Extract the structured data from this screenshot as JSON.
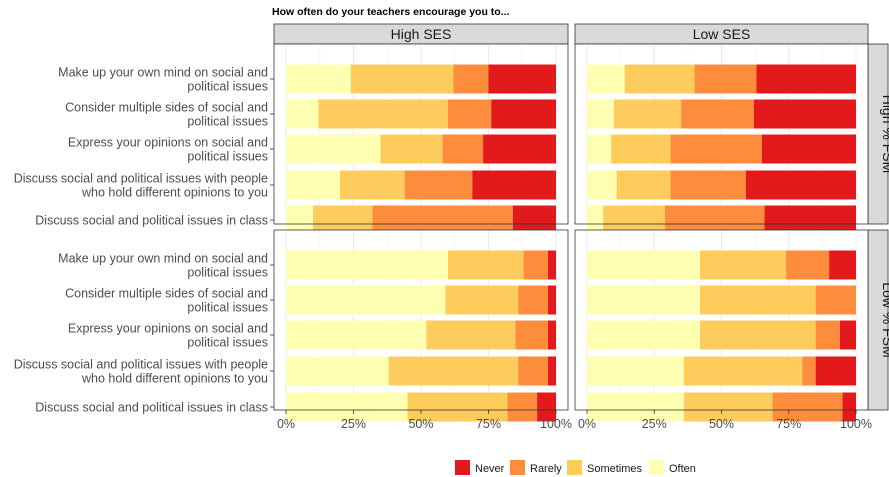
{
  "chart_data": {
    "type": "bar",
    "orientation": "horizontal",
    "stacked": "percent",
    "title": "How often do your teachers encourage you to...",
    "columns": [
      "High SES",
      "Low SES"
    ],
    "rows": [
      "High % FSM",
      "Low % FSM"
    ],
    "categories": [
      [
        "Make up your own mind on social and",
        "political issues"
      ],
      [
        "Consider multiple sides of social and",
        "political issues"
      ],
      [
        "Express your opinions on social and",
        "political issues"
      ],
      [
        "Discuss social and political issues with people",
        "who hold different opinions to you"
      ],
      [
        "Discuss social and political issues in class"
      ]
    ],
    "legend": [
      "Never",
      "Rarely",
      "Sometimes",
      "Often"
    ],
    "legend_position": "bottom",
    "colors": {
      "Never": "#e31a1c",
      "Rarely": "#fd8d3c",
      "Sometimes": "#fecc5c",
      "Often": "#ffffb2"
    },
    "xlim": [
      0,
      100
    ],
    "xticks": [
      "0%",
      "25%",
      "50%",
      "75%",
      "100%"
    ],
    "panels": [
      {
        "column": "High SES",
        "row": "High % FSM",
        "bars": [
          {
            "Often": 24,
            "Sometimes": 38,
            "Rarely": 13,
            "Never": 25
          },
          {
            "Often": 12,
            "Sometimes": 48,
            "Rarely": 16,
            "Never": 24
          },
          {
            "Often": 35,
            "Sometimes": 23,
            "Rarely": 15,
            "Never": 27
          },
          {
            "Often": 20,
            "Sometimes": 24,
            "Rarely": 25,
            "Never": 31
          },
          {
            "Often": 10,
            "Sometimes": 22,
            "Rarely": 52,
            "Never": 16
          }
        ]
      },
      {
        "column": "Low SES",
        "row": "High % FSM",
        "bars": [
          {
            "Often": 14,
            "Sometimes": 26,
            "Rarely": 23,
            "Never": 37
          },
          {
            "Often": 10,
            "Sometimes": 25,
            "Rarely": 27,
            "Never": 38
          },
          {
            "Often": 9,
            "Sometimes": 22,
            "Rarely": 34,
            "Never": 35
          },
          {
            "Often": 11,
            "Sometimes": 20,
            "Rarely": 28,
            "Never": 41
          },
          {
            "Often": 6,
            "Sometimes": 23,
            "Rarely": 37,
            "Never": 34
          }
        ]
      },
      {
        "column": "High SES",
        "row": "Low % FSM",
        "bars": [
          {
            "Often": 60,
            "Sometimes": 28,
            "Rarely": 9,
            "Never": 3
          },
          {
            "Often": 59,
            "Sometimes": 27,
            "Rarely": 11,
            "Never": 3
          },
          {
            "Often": 52,
            "Sometimes": 33,
            "Rarely": 12,
            "Never": 3
          },
          {
            "Often": 38,
            "Sometimes": 48,
            "Rarely": 11,
            "Never": 3
          },
          {
            "Often": 45,
            "Sometimes": 37,
            "Rarely": 11,
            "Never": 7
          }
        ]
      },
      {
        "column": "Low SES",
        "row": "Low % FSM",
        "bars": [
          {
            "Often": 42,
            "Sometimes": 32,
            "Rarely": 16,
            "Never": 10
          },
          {
            "Often": 42,
            "Sometimes": 43,
            "Rarely": 15,
            "Never": 0
          },
          {
            "Often": 42,
            "Sometimes": 43,
            "Rarely": 9,
            "Never": 6
          },
          {
            "Often": 36,
            "Sometimes": 44,
            "Rarely": 5,
            "Never": 15
          },
          {
            "Often": 36,
            "Sometimes": 33,
            "Rarely": 26,
            "Never": 5
          }
        ]
      }
    ]
  }
}
